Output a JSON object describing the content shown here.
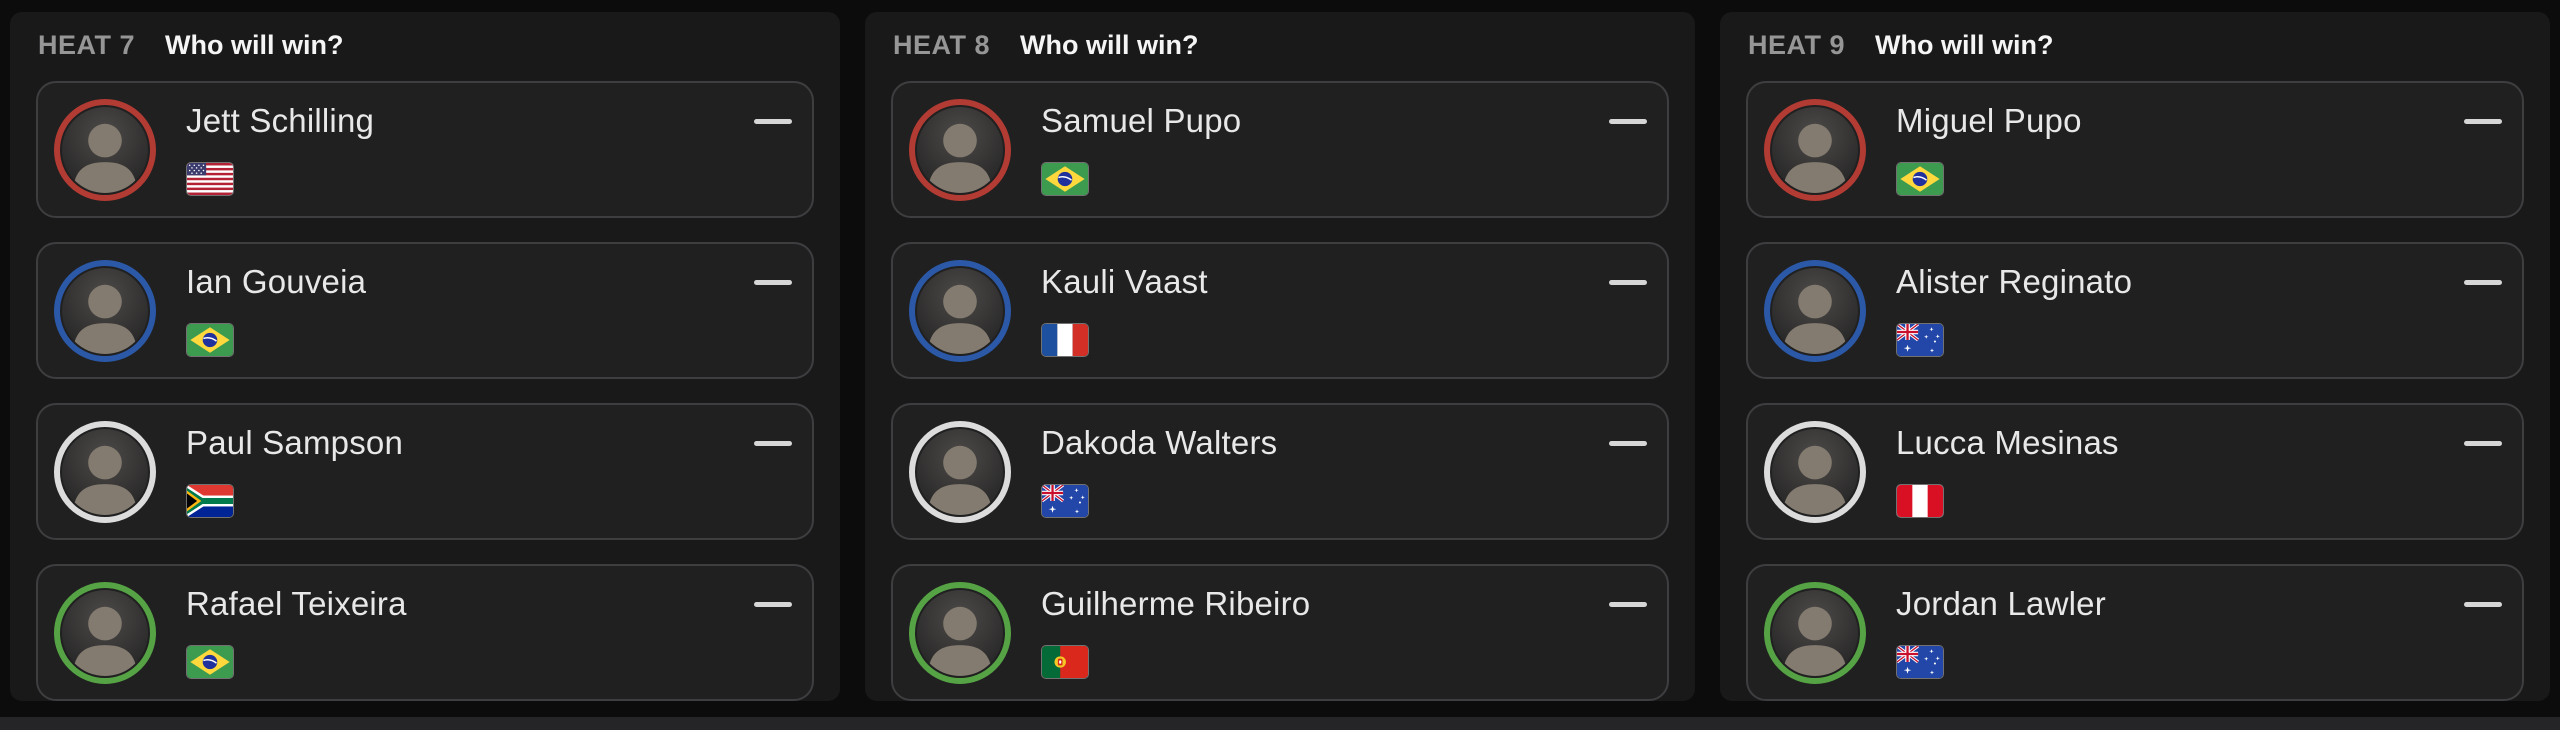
{
  "theme": {
    "page_bg": "#0c0c0d",
    "panel_bg": "#19191a",
    "card_bg": "#202021",
    "card_border": "#3e3e40",
    "heat_label_color": "#969696",
    "question_color": "#f5f5f5",
    "name_color": "#e8e8e8",
    "dash_color": "#d6d6d6",
    "ring_red": "#b23b33",
    "ring_blue": "#2b59a8",
    "ring_white": "#dcdcdc",
    "ring_green": "#55a344"
  },
  "heats": [
    {
      "label": "HEAT 7",
      "question": "Who will win?",
      "competitors": [
        {
          "name": "Jett Schilling",
          "flag": "flag-united-states",
          "ring_color": "#b23b33"
        },
        {
          "name": "Ian Gouveia",
          "flag": "flag-brazil",
          "ring_color": "#2b59a8"
        },
        {
          "name": "Paul Sampson",
          "flag": "flag-south-africa",
          "ring_color": "#dcdcdc"
        },
        {
          "name": "Rafael Teixeira",
          "flag": "flag-brazil",
          "ring_color": "#55a344"
        }
      ]
    },
    {
      "label": "HEAT 8",
      "question": "Who will win?",
      "competitors": [
        {
          "name": "Samuel Pupo",
          "flag": "flag-brazil",
          "ring_color": "#b23b33"
        },
        {
          "name": "Kauli Vaast",
          "flag": "flag-france",
          "ring_color": "#2b59a8"
        },
        {
          "name": "Dakoda Walters",
          "flag": "flag-australia",
          "ring_color": "#dcdcdc"
        },
        {
          "name": "Guilherme Ribeiro",
          "flag": "flag-portugal",
          "ring_color": "#55a344"
        }
      ]
    },
    {
      "label": "HEAT 9",
      "question": "Who will win?",
      "competitors": [
        {
          "name": "Miguel Pupo",
          "flag": "flag-brazil",
          "ring_color": "#b23b33"
        },
        {
          "name": "Alister Reginato",
          "flag": "flag-australia",
          "ring_color": "#2b59a8"
        },
        {
          "name": "Lucca Mesinas",
          "flag": "flag-peru",
          "ring_color": "#dcdcdc"
        },
        {
          "name": "Jordan Lawler",
          "flag": "flag-australia",
          "ring_color": "#55a344"
        }
      ]
    }
  ]
}
